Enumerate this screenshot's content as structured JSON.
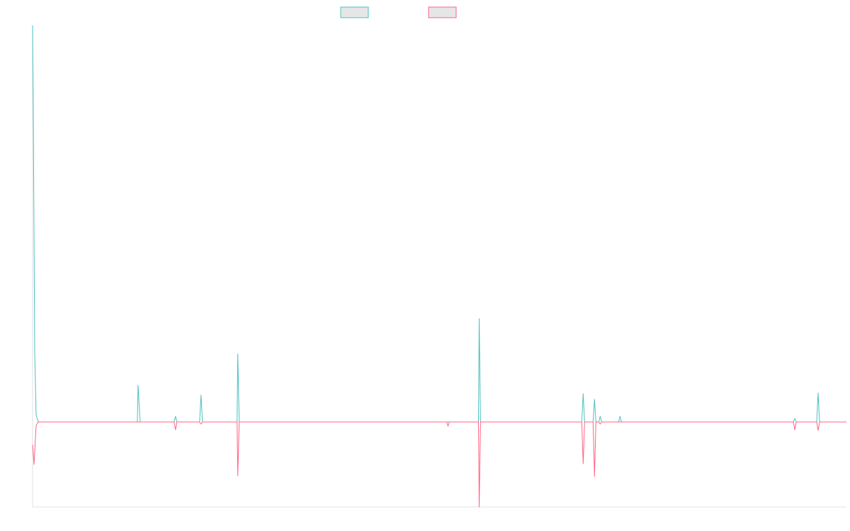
{
  "chart_data": {
    "type": "line",
    "title": "",
    "xlabel": "",
    "ylabel": "",
    "legend": "top-center",
    "grid": false,
    "xlim": [
      0,
      1150
    ],
    "ylim": [
      -120,
      560
    ],
    "series": [
      {
        "color": "#4bc0c0",
        "points": [
          [
            0,
            560
          ],
          [
            1,
            440
          ],
          [
            3,
            100
          ],
          [
            5,
            10
          ],
          [
            8,
            0
          ],
          [
            148,
            0
          ],
          [
            149,
            52
          ],
          [
            152,
            0
          ],
          [
            200,
            0
          ],
          [
            202,
            8
          ],
          [
            204,
            0
          ],
          [
            236,
            0
          ],
          [
            238,
            38
          ],
          [
            240,
            0
          ],
          [
            289,
            0
          ],
          [
            290,
            96
          ],
          [
            292,
            0
          ],
          [
            630,
            0
          ],
          [
            631,
            146
          ],
          [
            633,
            0
          ],
          [
            776,
            0
          ],
          [
            778,
            40
          ],
          [
            780,
            0
          ],
          [
            792,
            0
          ],
          [
            794,
            32
          ],
          [
            796,
            0
          ],
          [
            800,
            0
          ],
          [
            802,
            8
          ],
          [
            804,
            0
          ],
          [
            828,
            0
          ],
          [
            830,
            8
          ],
          [
            832,
            0
          ],
          [
            1075,
            0
          ],
          [
            1077,
            5
          ],
          [
            1079,
            0
          ],
          [
            1108,
            0
          ],
          [
            1110,
            41
          ],
          [
            1112,
            0
          ],
          [
            1150,
            0
          ]
        ]
      },
      {
        "color": "#ff6384",
        "points": [
          [
            0,
            -32
          ],
          [
            2,
            -60
          ],
          [
            5,
            -5
          ],
          [
            8,
            0
          ],
          [
            200,
            0
          ],
          [
            202,
            -11
          ],
          [
            204,
            0
          ],
          [
            236,
            0
          ],
          [
            238,
            -3
          ],
          [
            240,
            0
          ],
          [
            289,
            0
          ],
          [
            290,
            -76
          ],
          [
            292,
            0
          ],
          [
            585,
            0
          ],
          [
            587,
            -6
          ],
          [
            589,
            0
          ],
          [
            630,
            0
          ],
          [
            631,
            -120
          ],
          [
            633,
            0
          ],
          [
            776,
            0
          ],
          [
            778,
            -59
          ],
          [
            780,
            0
          ],
          [
            792,
            0
          ],
          [
            794,
            -77
          ],
          [
            796,
            0
          ],
          [
            800,
            0
          ],
          [
            802,
            -3
          ],
          [
            804,
            0
          ],
          [
            1075,
            0
          ],
          [
            1077,
            -11
          ],
          [
            1079,
            0
          ],
          [
            1108,
            0
          ],
          [
            1110,
            -12
          ],
          [
            1112,
            0
          ],
          [
            1150,
            0
          ]
        ]
      }
    ]
  }
}
